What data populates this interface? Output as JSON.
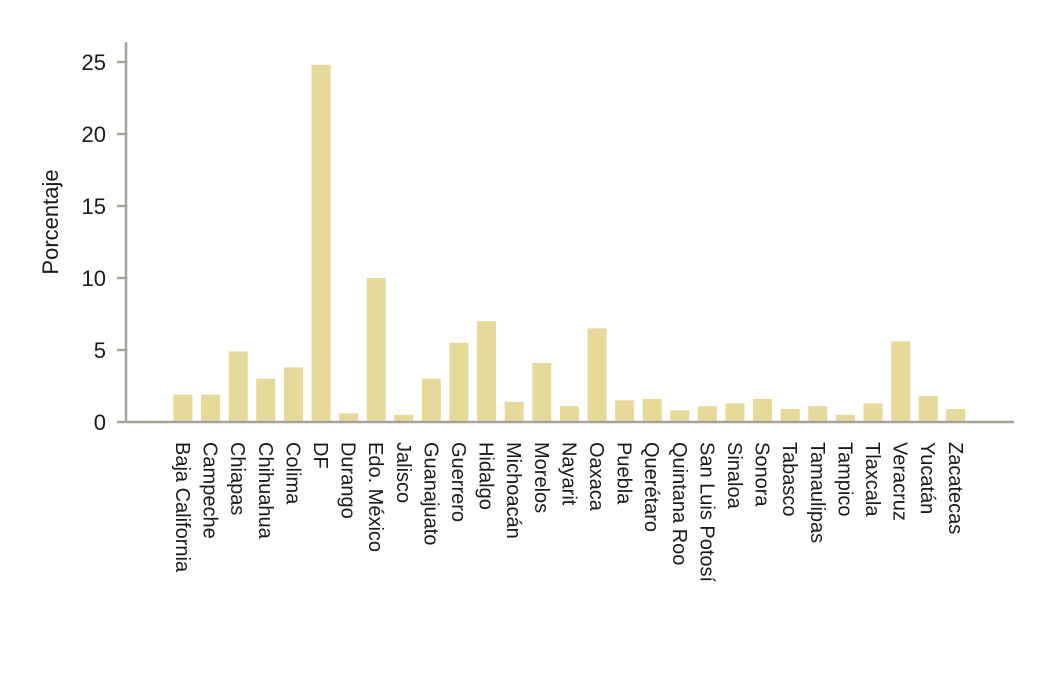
{
  "chart_data": {
    "type": "bar",
    "title": "",
    "xlabel": "",
    "ylabel": "Porcentaje",
    "ylim": [
      0,
      25
    ],
    "yticks": [
      0,
      5,
      10,
      15,
      20,
      25
    ],
    "grid": false,
    "legend": "none",
    "bar_color": "#e6d99a",
    "axis_color": "#a8a39a",
    "categories": [
      "Baja California",
      "Campeche",
      "Chiapas",
      "Chihuahua",
      "Colima",
      "DF",
      "Durango",
      "Edo. México",
      "Jalisco",
      "Guanajuato",
      "Guerrero",
      "Hidalgo",
      "Michoacán",
      "Morelos",
      "Nayarit",
      "Oaxaca",
      "Puebla",
      "Querétaro",
      "Quintana Roo",
      "San Luis Potosí",
      "Sinaloa",
      "Sonora",
      "Tabasco",
      "Tamaulipas",
      "Tampico",
      "Tlaxcala",
      "Veracruz",
      "Yucatán",
      "Zacatecas"
    ],
    "values": [
      1.9,
      1.9,
      4.9,
      3.0,
      3.8,
      24.8,
      0.6,
      10.0,
      0.5,
      3.0,
      5.5,
      7.0,
      1.4,
      4.1,
      1.1,
      6.5,
      1.5,
      1.6,
      0.8,
      1.1,
      1.3,
      1.6,
      0.9,
      1.1,
      0.5,
      1.3,
      5.6,
      1.8,
      0.9
    ]
  }
}
